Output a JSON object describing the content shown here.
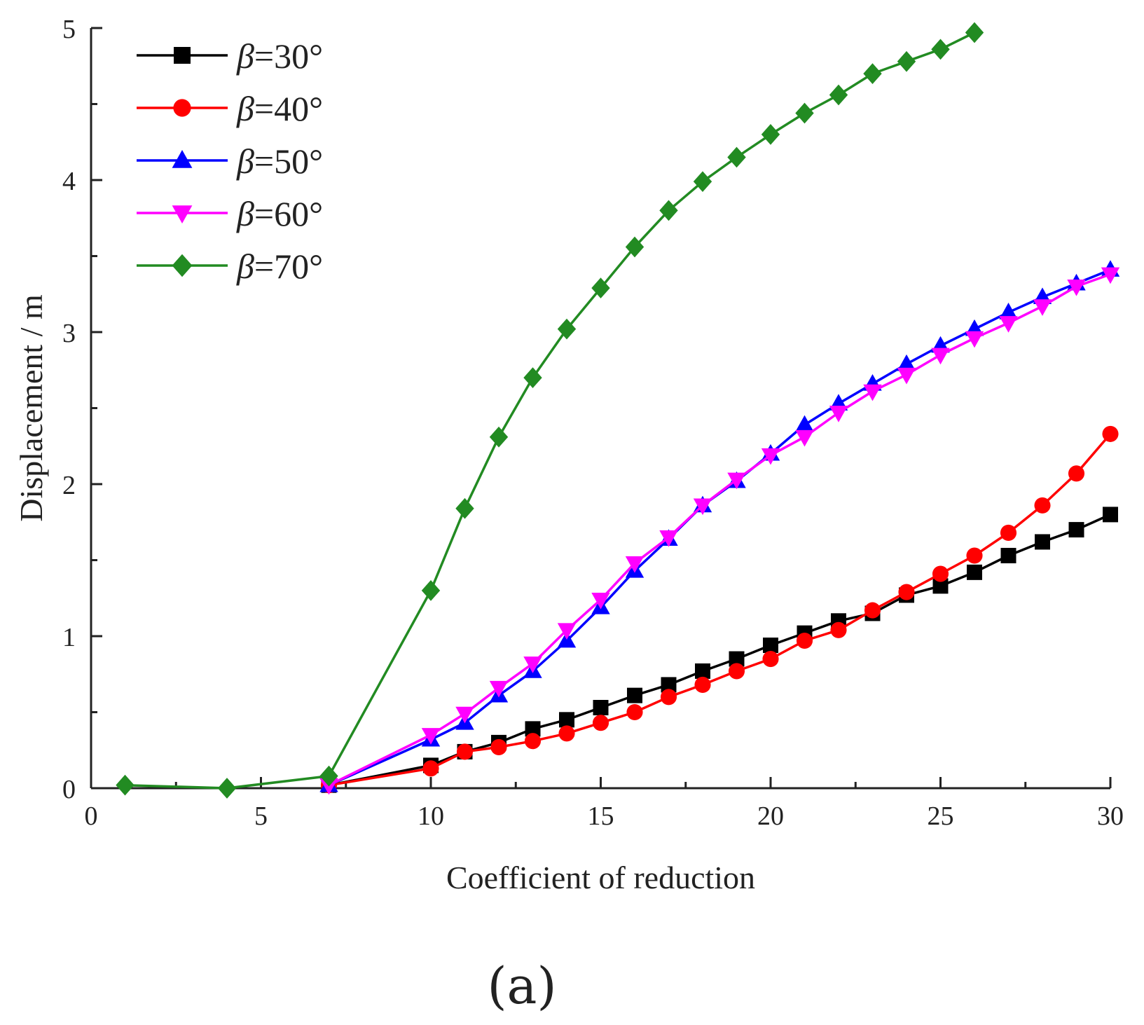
{
  "panel_label": "(a)",
  "chart_data": {
    "type": "line",
    "title": "",
    "xlabel": "Coefficient of reduction",
    "ylabel": "Displacement / m",
    "xlim": [
      0,
      30
    ],
    "ylim": [
      0,
      5
    ],
    "xticks": [
      0,
      5,
      10,
      15,
      20,
      25,
      30
    ],
    "yticks": [
      0,
      1,
      2,
      3,
      4,
      5
    ],
    "legend_position": "top-left",
    "series": [
      {
        "name": "β=30°",
        "symbol": "β",
        "label_rest": "=30°",
        "color": "#000000",
        "marker": "square",
        "x": [
          7,
          10,
          11,
          12,
          13,
          14,
          15,
          16,
          17,
          18,
          19,
          20,
          21,
          22,
          23,
          24,
          25,
          26,
          27,
          28,
          29,
          30
        ],
        "y": [
          0.02,
          0.15,
          0.24,
          0.3,
          0.39,
          0.45,
          0.53,
          0.61,
          0.68,
          0.77,
          0.85,
          0.94,
          1.02,
          1.1,
          1.15,
          1.27,
          1.33,
          1.42,
          1.53,
          1.62,
          1.7,
          1.8
        ]
      },
      {
        "name": "β=40°",
        "symbol": "β",
        "label_rest": "=40°",
        "color": "#ff0000",
        "marker": "circle",
        "x": [
          7,
          10,
          11,
          12,
          13,
          14,
          15,
          16,
          17,
          18,
          19,
          20,
          21,
          22,
          23,
          24,
          25,
          26,
          27,
          28,
          29,
          30
        ],
        "y": [
          0.02,
          0.13,
          0.24,
          0.27,
          0.31,
          0.36,
          0.43,
          0.5,
          0.6,
          0.68,
          0.77,
          0.85,
          0.97,
          1.04,
          1.17,
          1.29,
          1.41,
          1.53,
          1.68,
          1.86,
          2.07,
          2.33
        ]
      },
      {
        "name": "β=50°",
        "symbol": "β",
        "label_rest": "=50°",
        "color": "#0000ff",
        "marker": "triangle-up",
        "x": [
          7,
          10,
          11,
          12,
          13,
          14,
          15,
          16,
          17,
          18,
          19,
          20,
          21,
          22,
          23,
          24,
          25,
          26,
          27,
          28,
          29,
          30
        ],
        "y": [
          0.02,
          0.32,
          0.43,
          0.61,
          0.77,
          0.97,
          1.19,
          1.43,
          1.64,
          1.86,
          2.02,
          2.2,
          2.39,
          2.53,
          2.66,
          2.79,
          2.91,
          3.02,
          3.13,
          3.23,
          3.32,
          3.41
        ]
      },
      {
        "name": "β=60°",
        "symbol": "β",
        "label_rest": "=60°",
        "color": "#ff00ff",
        "marker": "triangle-down",
        "x": [
          7,
          10,
          11,
          12,
          13,
          14,
          15,
          16,
          17,
          18,
          19,
          20,
          21,
          22,
          23,
          24,
          25,
          26,
          27,
          28,
          29,
          30
        ],
        "y": [
          0.02,
          0.35,
          0.49,
          0.66,
          0.82,
          1.04,
          1.24,
          1.48,
          1.65,
          1.86,
          2.03,
          2.19,
          2.31,
          2.47,
          2.61,
          2.72,
          2.85,
          2.96,
          3.06,
          3.17,
          3.3,
          3.38
        ]
      },
      {
        "name": "β=70°",
        "symbol": "β",
        "label_rest": "=70°",
        "color": "#228b22",
        "marker": "diamond",
        "x": [
          1,
          4,
          7,
          10,
          11,
          12,
          13,
          14,
          15,
          16,
          17,
          18,
          19,
          20,
          21,
          22,
          23,
          24,
          25,
          26
        ],
        "y": [
          0.02,
          0.0,
          0.08,
          1.3,
          1.84,
          2.31,
          2.7,
          3.02,
          3.29,
          3.56,
          3.8,
          3.99,
          4.15,
          4.3,
          4.44,
          4.56,
          4.7,
          4.78,
          4.86,
          4.97
        ]
      }
    ]
  }
}
